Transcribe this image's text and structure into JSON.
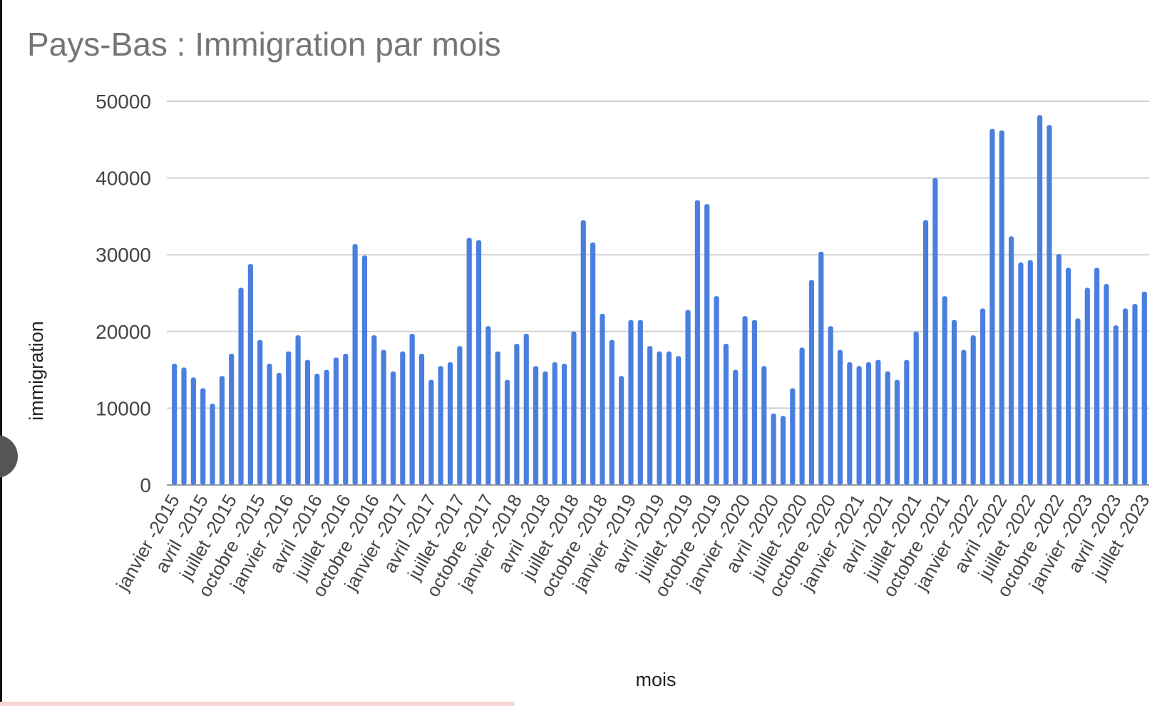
{
  "chart_data": {
    "type": "bar",
    "title": "Pays-Bas : Immigration par mois",
    "x_label": "mois",
    "y_label": "immigration",
    "categories": [
      "janvier -2015",
      null,
      null,
      "avril -2015",
      null,
      null,
      "juillet -2015",
      null,
      null,
      "octobre -2015",
      null,
      null,
      "janvier -2016",
      null,
      null,
      "avril -2016",
      null,
      null,
      "juillet -2016",
      null,
      null,
      "octobre -2016",
      null,
      null,
      "janvier -2017",
      null,
      null,
      "avril -2017",
      null,
      null,
      "juillet -2017",
      null,
      null,
      "octobre -2017",
      null,
      null,
      "janvier -2018",
      null,
      null,
      "avril -2018",
      null,
      null,
      "juillet -2018",
      null,
      null,
      "octobre -2018",
      null,
      null,
      "janvier -2019",
      null,
      null,
      "avril -2019",
      null,
      null,
      "juillet -2019",
      null,
      null,
      "octobre -2019",
      null,
      null,
      "janvier -2020",
      null,
      null,
      "avril -2020",
      null,
      null,
      "juillet -2020",
      null,
      null,
      "octobre -2020",
      null,
      null,
      "janvier -2021",
      null,
      null,
      "avril -2021",
      null,
      null,
      "juillet -2021",
      null,
      null,
      "octobre -2021",
      null,
      null,
      "janvier -2022",
      null,
      null,
      "avril -2022",
      null,
      null,
      "juillet -2022",
      null,
      null,
      "octobre -2022",
      null,
      null,
      "janvier -2023",
      null,
      null,
      "avril -2023",
      null,
      null,
      "juillet -2023"
    ],
    "values": [
      15800,
      15300,
      14000,
      12600,
      10600,
      14200,
      17100,
      25700,
      28800,
      18900,
      15800,
      14600,
      17400,
      19500,
      16300,
      14500,
      15000,
      16600,
      17100,
      31400,
      29900,
      19500,
      17600,
      14800,
      17400,
      19700,
      17100,
      13700,
      15500,
      16000,
      18100,
      32200,
      31900,
      20700,
      17400,
      13700,
      18400,
      19700,
      15500,
      14800,
      16000,
      15800,
      20000,
      34500,
      31600,
      22300,
      18900,
      14200,
      21500,
      21500,
      18100,
      17400,
      17400,
      16800,
      22800,
      37100,
      36600,
      24600,
      18400,
      15000,
      22000,
      21500,
      15500,
      9300,
      9000,
      12600,
      17900,
      26700,
      30400,
      20700,
      17600,
      16000,
      15500,
      16000,
      16300,
      14800,
      13700,
      16300,
      20000,
      34500,
      40000,
      24600,
      21500,
      17600,
      19500,
      23000,
      46400,
      46200,
      32400,
      29000,
      29300,
      48200,
      46900,
      30100,
      28300,
      21700,
      25700,
      28300,
      26200,
      20800,
      23000,
      23600,
      25200
    ],
    "color": "#4a7fe0",
    "ylim": [
      0,
      50000
    ],
    "yticks": [
      0,
      10000,
      20000,
      30000,
      40000,
      50000
    ],
    "grid": true
  }
}
